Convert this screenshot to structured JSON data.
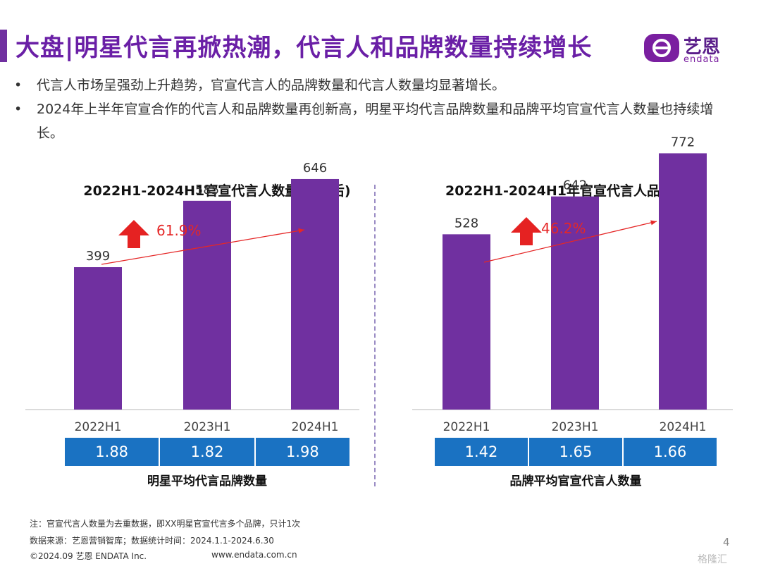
{
  "header": {
    "title": "大盘|明星代言再掀热潮，代言人和品牌数量持续增长"
  },
  "logo": {
    "name_cn": "艺恩",
    "name_en": "endata"
  },
  "bullets": [
    "代言人市场呈强劲上升趋势，官宣代言人的品牌数量和代言人数量均显著增长。",
    "2024年上半年官宣合作的代言人和品牌数量再创新高，明星平均代言品牌数量和品牌平均官宣代言人数量也持续增长。"
  ],
  "chart_data": [
    {
      "type": "bar",
      "title": "2022H1-2024H1官宣代言人数量(去重后)",
      "categories": [
        "2022H1",
        "2023H1",
        "2024H1"
      ],
      "values": [
        399,
        585,
        646
      ],
      "growth_label": "61.9%",
      "ylim": [
        0,
        800
      ],
      "bar_color": "#7030a0",
      "ratio_label": "明星平均代言品牌数量",
      "ratios": [
        "1.88",
        "1.82",
        "1.98"
      ]
    },
    {
      "type": "bar",
      "title": "2022H1-2024H1年官宣代言人品牌数量",
      "categories": [
        "2022H1",
        "2023H1",
        "2024H1"
      ],
      "values": [
        528,
        642,
        772
      ],
      "growth_label": "46.2%",
      "ylim": [
        0,
        860
      ],
      "bar_color": "#7030a0",
      "ratio_label": "品牌平均官宣代言人数量",
      "ratios": [
        "1.42",
        "1.65",
        "1.66"
      ]
    }
  ],
  "footer": {
    "note": "注：官宣代言人数量为去重数据，即XX明星官宣代言多个品牌，只计1次",
    "source": "数据来源：艺恩营销智库；数据统计时间：2024.1.1-2024.6.30",
    "copyright": "©2024.09 艺恩 ENDATA Inc.",
    "url": "www.endata.com.cn",
    "page": "4",
    "watermark": "格隆汇"
  },
  "colors": {
    "accent": "#7030a0",
    "title": "#6a1fa6",
    "ratio_bg": "#1a72c2",
    "growth": "#e52727"
  }
}
